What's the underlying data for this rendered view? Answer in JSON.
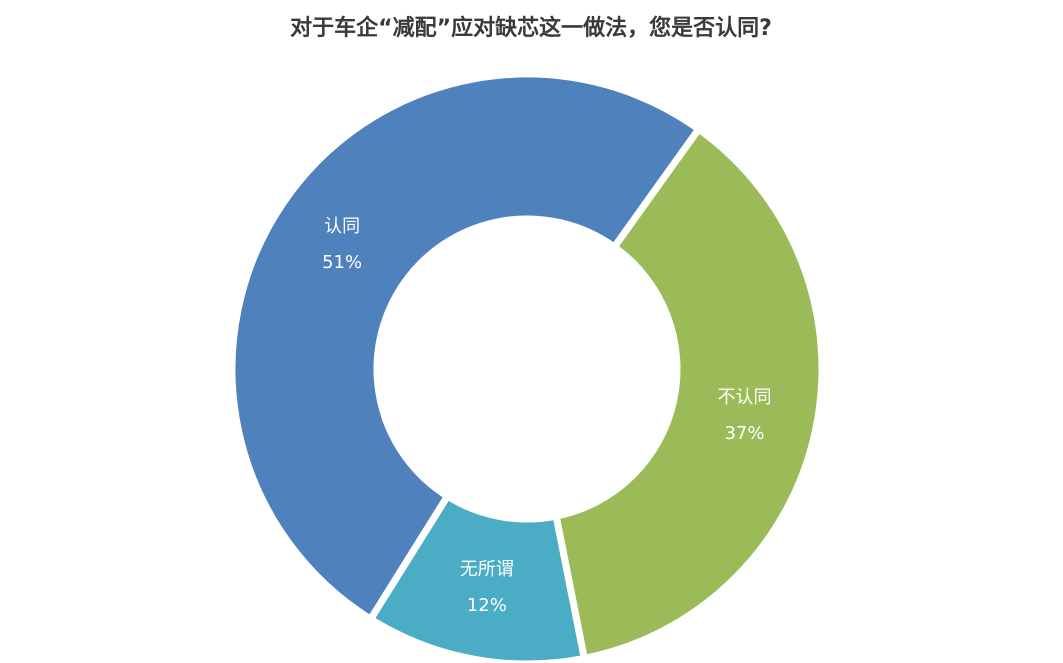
{
  "chart_data": {
    "type": "donut",
    "title": "对于车企“减配”应对缺芯这一做法，您是否认同?",
    "categories": [
      "认同",
      "不认同",
      "无所谓"
    ],
    "values": [
      51,
      37,
      12
    ],
    "value_labels": [
      "51%",
      "37%",
      "12%"
    ],
    "colors": [
      "#4f81bd",
      "#9bbb59",
      "#4bacc6"
    ]
  }
}
